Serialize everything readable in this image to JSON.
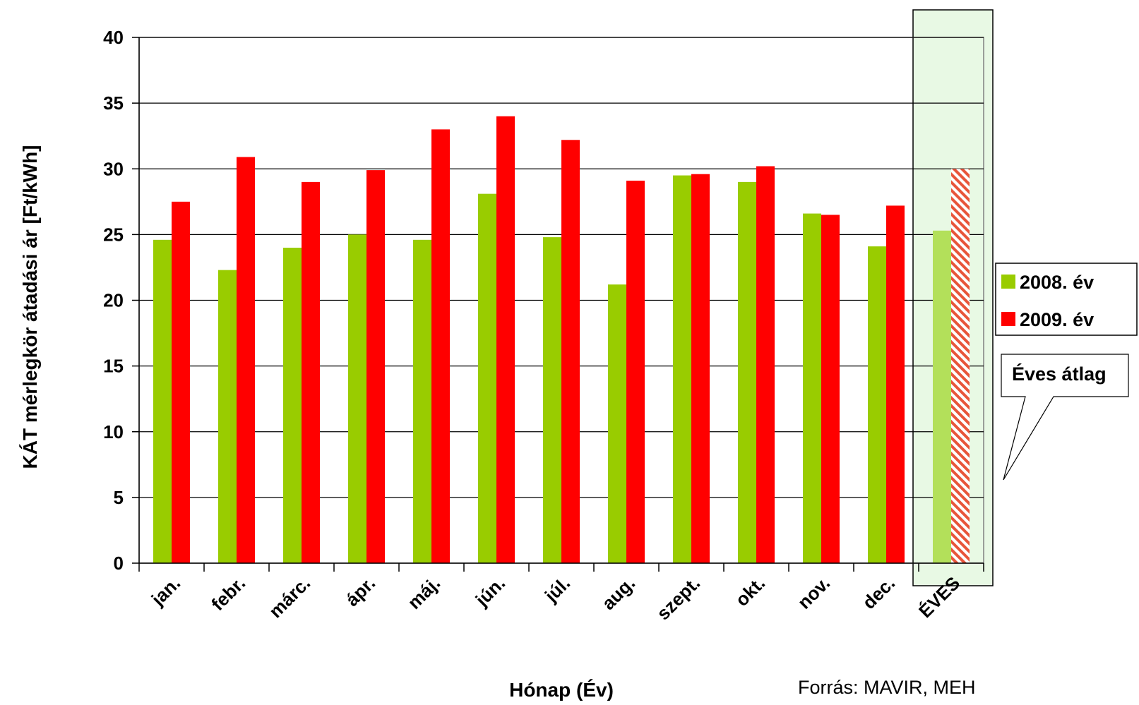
{
  "chart_data": {
    "type": "bar",
    "categories": [
      "jan.",
      "febr.",
      "márc.",
      "ápr.",
      "máj.",
      "jún.",
      "júl.",
      "aug.",
      "szept.",
      "okt.",
      "nov.",
      "dec.",
      "ÉVES"
    ],
    "series": [
      {
        "name": "2008. év",
        "color": "#99CC00",
        "values": [
          24.6,
          22.3,
          24.0,
          25.0,
          24.6,
          28.1,
          24.8,
          21.2,
          29.5,
          29.0,
          26.6,
          24.1,
          25.3
        ]
      },
      {
        "name": "2009. év",
        "color": "#FF0000",
        "values": [
          27.5,
          30.9,
          29.0,
          29.9,
          33.0,
          34.0,
          32.2,
          29.1,
          29.6,
          30.2,
          26.5,
          27.2,
          30.0
        ]
      }
    ],
    "highlight": {
      "category": "ÉVES",
      "series_2008_color": "#B3E05A",
      "series_2009_pattern": "red-white-diagonal-hatch",
      "background": "#E8F9E4"
    },
    "xlabel": "Hónap (Év)",
    "ylabel": "KÁT mérlegkör átadási ár [Ft/kWh]",
    "ylim": [
      0,
      40
    ],
    "yticks": [
      0,
      5,
      10,
      15,
      20,
      25,
      30,
      35,
      40
    ],
    "grid": true,
    "legend_position": "right",
    "callout": "Éves átlag",
    "source": "Forrás: MAVIR, MEH"
  }
}
